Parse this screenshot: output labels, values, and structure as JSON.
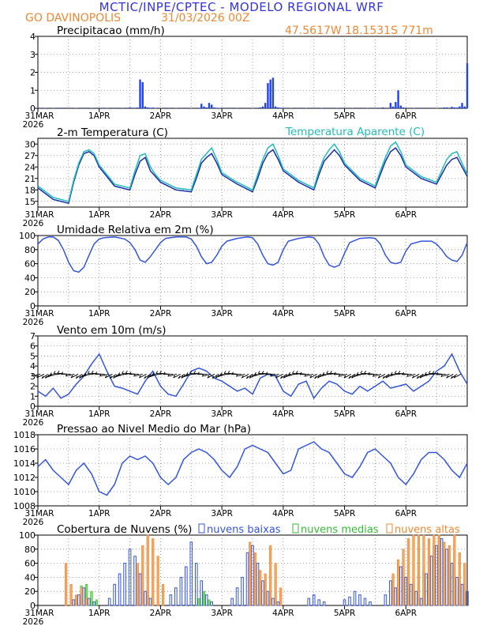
{
  "header": {
    "title": "MCTIC/INPE/CPTEC - MODELO REGIONAL WRF",
    "location": "GO DAVINOPOLIS",
    "run": "31/03/2026 00Z",
    "coords": "47.5617W 18.1531S 771m",
    "title_color": "#3333dd",
    "accent_color": "#ee8833"
  },
  "x_axis": {
    "ticks": [
      "31MAR",
      "1APR",
      "2APR",
      "3APR",
      "4APR",
      "5APR",
      "6APR"
    ],
    "year": "2026",
    "days": 7,
    "grid_hours": [
      0,
      12
    ]
  },
  "chart_data": [
    {
      "id": "precip",
      "type": "bar",
      "title": "Precipitacao (mm/h)",
      "ylim": [
        0,
        4
      ],
      "yticks": [
        "0",
        "1",
        "2",
        "3",
        "4"
      ],
      "color": "#2244ee",
      "hours": [
        0,
        3,
        6,
        9,
        12,
        15,
        18,
        21,
        24,
        27,
        30,
        33,
        36,
        38,
        39,
        40,
        41,
        42,
        43,
        44,
        45,
        46,
        48,
        51,
        54,
        57,
        60,
        63,
        64,
        65,
        66,
        67,
        68,
        69,
        70,
        71,
        72,
        75,
        78,
        81,
        84,
        87,
        88,
        89,
        90,
        91,
        92,
        93,
        94,
        95,
        96,
        99,
        102,
        105,
        108,
        111,
        114,
        117,
        120,
        123,
        126,
        129,
        132,
        135,
        138,
        139,
        140,
        141,
        142,
        143,
        144,
        147,
        150,
        153,
        156,
        159,
        160,
        162,
        163,
        164,
        165,
        166,
        167,
        168
      ],
      "values": [
        0.03,
        0.02,
        0.02,
        0.03,
        0.03,
        0.02,
        0.03,
        0.02,
        0.03,
        0.02,
        0.03,
        0.02,
        0.05,
        0.03,
        0.04,
        1.6,
        1.45,
        0.1,
        0.05,
        0.03,
        0.04,
        0.02,
        0.02,
        0.03,
        0.02,
        0.03,
        0.02,
        0.03,
        0.25,
        0.1,
        0.05,
        0.3,
        0.2,
        0.05,
        0.03,
        0.02,
        0.03,
        0.03,
        0.02,
        0.03,
        0.02,
        0.05,
        0.1,
        0.3,
        1.4,
        1.6,
        1.7,
        0.1,
        0.05,
        0.03,
        0.03,
        0.02,
        0.03,
        0.02,
        0.03,
        0.02,
        0.03,
        0.02,
        0.03,
        0.02,
        0.03,
        0.02,
        0.03,
        0.05,
        0.3,
        0.1,
        0.35,
        1.0,
        0.15,
        0.05,
        0.03,
        0.02,
        0.03,
        0.03,
        0.02,
        0.05,
        0.05,
        0.08,
        0.05,
        0.04,
        0.1,
        0.3,
        0.1,
        2.5
      ]
    },
    {
      "id": "temp",
      "type": "line",
      "title": "2-m Temperatura (C)",
      "legend": "Temperatura Aparente (C)",
      "ylim": [
        13.5,
        31.5
      ],
      "yticks": [
        "15",
        "18",
        "21",
        "24",
        "27",
        "30"
      ],
      "series": [
        {
          "name": "temperatura",
          "color": "#1a2ea8",
          "x": [
            0,
            6,
            12,
            14,
            16,
            18,
            20,
            22,
            24,
            30,
            36,
            38,
            40,
            42,
            44,
            46,
            48,
            54,
            60,
            62,
            64,
            66,
            68,
            70,
            72,
            78,
            84,
            86,
            88,
            90,
            92,
            94,
            96,
            102,
            108,
            110,
            112,
            114,
            116,
            118,
            120,
            126,
            132,
            134,
            136,
            138,
            140,
            142,
            144,
            150,
            156,
            158,
            160,
            162,
            164,
            166,
            168
          ],
          "y": [
            18.5,
            15.5,
            14.5,
            20,
            24.5,
            27.5,
            28,
            27,
            24,
            19,
            18,
            22,
            25.5,
            26.5,
            23,
            21.5,
            20,
            18,
            17.5,
            21,
            25,
            26.5,
            27.5,
            25,
            22,
            19.5,
            17.5,
            21,
            25,
            27.5,
            28.5,
            26,
            23,
            20,
            18,
            22,
            25.5,
            27,
            28.5,
            27,
            24.5,
            20.5,
            18.5,
            22,
            25.5,
            28,
            29,
            27,
            24,
            21,
            19.5,
            22,
            24.5,
            26,
            26.5,
            24,
            21.5
          ]
        },
        {
          "name": "temperatura aparente",
          "color": "#22bbbb",
          "x": [
            0,
            6,
            12,
            14,
            16,
            18,
            20,
            22,
            24,
            30,
            36,
            38,
            40,
            42,
            44,
            46,
            48,
            54,
            60,
            62,
            64,
            66,
            68,
            70,
            72,
            78,
            84,
            86,
            88,
            90,
            92,
            94,
            96,
            102,
            108,
            110,
            112,
            114,
            116,
            118,
            120,
            126,
            132,
            134,
            136,
            138,
            140,
            142,
            144,
            150,
            156,
            158,
            160,
            162,
            164,
            166,
            168
          ],
          "y": [
            19,
            16,
            15,
            20.5,
            25,
            28,
            28.5,
            27.5,
            24.5,
            19.5,
            18.5,
            23,
            27,
            27.5,
            24,
            22,
            20.5,
            18.5,
            18,
            22,
            26,
            27.5,
            29,
            26,
            22.5,
            20,
            18,
            22,
            26,
            29,
            30,
            27,
            23.5,
            20.5,
            18.5,
            23,
            26.5,
            28.5,
            30,
            28,
            25,
            21,
            19,
            23,
            26.5,
            29.5,
            30.5,
            28,
            24.5,
            21.5,
            20,
            23,
            26,
            27.5,
            28,
            25,
            22
          ]
        }
      ]
    },
    {
      "id": "rh",
      "type": "line",
      "title": "Umidade Relativa em 2m (%)",
      "ylim": [
        0,
        100
      ],
      "yticks": [
        "0",
        "20",
        "40",
        "60",
        "80",
        "100"
      ],
      "series": [
        {
          "name": "umidade",
          "color": "#3355dd",
          "x": [
            0,
            2,
            4,
            6,
            8,
            10,
            12,
            14,
            16,
            18,
            20,
            22,
            24,
            26,
            30,
            34,
            36,
            38,
            40,
            42,
            44,
            46,
            48,
            50,
            54,
            58,
            60,
            62,
            64,
            66,
            68,
            70,
            72,
            74,
            78,
            82,
            84,
            86,
            88,
            90,
            92,
            94,
            96,
            98,
            102,
            106,
            108,
            110,
            112,
            114,
            116,
            118,
            120,
            122,
            126,
            130,
            132,
            134,
            136,
            138,
            140,
            142,
            144,
            146,
            150,
            154,
            156,
            158,
            160,
            162,
            164,
            166,
            168
          ],
          "y": [
            88,
            95,
            98,
            98,
            93,
            80,
            62,
            50,
            48,
            55,
            72,
            88,
            95,
            97,
            98,
            95,
            90,
            80,
            65,
            62,
            70,
            80,
            90,
            96,
            98,
            98,
            95,
            85,
            70,
            60,
            62,
            72,
            85,
            92,
            96,
            98,
            97,
            88,
            72,
            60,
            58,
            62,
            80,
            92,
            96,
            98,
            97,
            88,
            70,
            58,
            55,
            58,
            75,
            90,
            96,
            97,
            96,
            88,
            72,
            62,
            60,
            62,
            78,
            88,
            92,
            92,
            88,
            80,
            70,
            65,
            63,
            72,
            90
          ]
        }
      ]
    },
    {
      "id": "wind",
      "type": "line",
      "title": "Vento em 10m (m/s)",
      "ylim": [
        0,
        7
      ],
      "yticks": [
        "0",
        "1",
        "2",
        "3",
        "4",
        "5",
        "6",
        "7"
      ],
      "series": [
        {
          "name": "vento",
          "color": "#3355dd",
          "x": [
            0,
            3,
            6,
            9,
            12,
            15,
            18,
            21,
            24,
            27,
            30,
            33,
            36,
            39,
            42,
            45,
            48,
            51,
            54,
            57,
            60,
            63,
            66,
            69,
            72,
            75,
            78,
            81,
            84,
            87,
            90,
            93,
            96,
            99,
            102,
            105,
            108,
            111,
            114,
            117,
            120,
            123,
            126,
            129,
            132,
            135,
            138,
            141,
            144,
            147,
            150,
            153,
            156,
            159,
            162,
            165,
            168
          ],
          "y": [
            1.5,
            1.0,
            1.8,
            0.8,
            1.2,
            2.2,
            3.0,
            4.2,
            5.2,
            3.5,
            2.0,
            1.8,
            1.5,
            1.2,
            2.5,
            3.5,
            2.0,
            1.2,
            1.0,
            2.2,
            3.5,
            3.8,
            3.5,
            2.8,
            2.5,
            2.0,
            1.5,
            1.8,
            1.2,
            2.8,
            3.2,
            3.0,
            1.5,
            1.0,
            2.2,
            2.5,
            0.8,
            1.8,
            2.5,
            2.2,
            1.5,
            1.2,
            2.0,
            1.5,
            2.0,
            2.5,
            1.8,
            2.0,
            2.2,
            1.5,
            2.0,
            2.5,
            3.5,
            4.0,
            5.2,
            3.5,
            2.2
          ]
        }
      ],
      "barbs": {
        "color": "#000000",
        "level": 3.2,
        "count": 112
      }
    },
    {
      "id": "pressure",
      "type": "line",
      "title": "Pressao ao Nivel Medio do Mar (hPa)",
      "ylim": [
        1008,
        1018
      ],
      "yticks": [
        "1008",
        "1010",
        "1012",
        "1014",
        "1016",
        "1018"
      ],
      "series": [
        {
          "name": "pressao",
          "color": "#3355dd",
          "x": [
            0,
            3,
            6,
            9,
            12,
            15,
            18,
            21,
            24,
            27,
            30,
            33,
            36,
            39,
            42,
            45,
            48,
            51,
            54,
            57,
            60,
            63,
            66,
            69,
            72,
            75,
            78,
            81,
            84,
            87,
            90,
            93,
            96,
            99,
            102,
            105,
            108,
            111,
            114,
            117,
            120,
            123,
            126,
            129,
            132,
            135,
            138,
            141,
            144,
            147,
            150,
            153,
            156,
            159,
            162,
            165,
            168
          ],
          "y": [
            1013.5,
            1014.5,
            1013,
            1012,
            1011,
            1013,
            1014,
            1012.5,
            1010,
            1009.5,
            1011,
            1014,
            1015,
            1014.5,
            1015,
            1014,
            1012,
            1011,
            1012,
            1014.5,
            1015.5,
            1016,
            1015.5,
            1014.5,
            1013,
            1012,
            1013.5,
            1016,
            1016.5,
            1016,
            1015.5,
            1014,
            1012.5,
            1013,
            1016,
            1016.5,
            1017,
            1016,
            1015.5,
            1014,
            1012.5,
            1012,
            1013.5,
            1015.5,
            1016,
            1015,
            1014,
            1012,
            1011,
            1012.5,
            1014.5,
            1015.5,
            1015.5,
            1014.5,
            1013,
            1012,
            1014
          ]
        }
      ]
    },
    {
      "id": "clouds",
      "type": "bar",
      "title": "Cobertura de Nuvens (%)",
      "ylim": [
        0,
        100
      ],
      "yticks": [
        "0",
        "20",
        "40",
        "60",
        "80",
        "100"
      ],
      "legend": [
        {
          "name": "nuvens baixas",
          "color": "#3355dd"
        },
        {
          "name": "nuvens medias",
          "color": "#33bb33"
        },
        {
          "name": "nuvens altas",
          "color": "#ee8833"
        }
      ],
      "series": [
        {
          "name": "nuvens baixas",
          "hours": [
            14,
            16,
            18,
            20,
            22,
            28,
            30,
            32,
            34,
            36,
            38,
            40,
            42,
            44,
            52,
            54,
            56,
            58,
            60,
            62,
            64,
            66,
            68,
            76,
            78,
            80,
            82,
            84,
            86,
            88,
            90,
            92,
            94,
            106,
            108,
            110,
            112,
            120,
            122,
            124,
            126,
            128,
            130,
            136,
            138,
            140,
            142,
            144,
            146,
            148,
            150,
            152,
            154,
            156,
            158,
            160,
            162,
            164,
            166,
            168
          ],
          "values": [
            8,
            15,
            25,
            10,
            5,
            10,
            30,
            45,
            60,
            80,
            70,
            45,
            20,
            10,
            15,
            25,
            40,
            55,
            90,
            60,
            35,
            15,
            5,
            10,
            25,
            40,
            75,
            85,
            60,
            35,
            20,
            10,
            5,
            10,
            15,
            8,
            5,
            8,
            12,
            20,
            15,
            10,
            5,
            15,
            35,
            25,
            55,
            40,
            30,
            20,
            10,
            45,
            70,
            85,
            95,
            80,
            60,
            40,
            30,
            20
          ]
        },
        {
          "name": "nuvens medias",
          "hours": [
            15,
            17,
            19,
            21,
            23,
            41,
            43,
            45,
            63,
            65,
            67,
            85,
            87,
            89,
            91,
            93,
            139,
            143,
            145,
            147,
            149,
            151,
            153,
            155,
            157,
            159,
            161,
            163,
            165,
            167
          ],
          "values": [
            12,
            28,
            30,
            20,
            8,
            10,
            15,
            5,
            10,
            20,
            8,
            15,
            25,
            20,
            12,
            6,
            10,
            20,
            35,
            30,
            60,
            50,
            45,
            85,
            100,
            90,
            60,
            40,
            25,
            15
          ]
        },
        {
          "name": "nuvens altas",
          "hours": [
            11,
            13,
            15,
            17,
            19,
            39,
            41,
            43,
            45,
            47,
            49,
            83,
            85,
            87,
            89,
            91,
            93,
            95,
            139,
            141,
            143,
            145,
            147,
            149,
            151,
            153,
            155,
            157,
            159,
            161,
            163,
            165,
            167
          ],
          "values": [
            60,
            30,
            15,
            25,
            10,
            60,
            85,
            100,
            95,
            70,
            30,
            90,
            75,
            50,
            45,
            85,
            60,
            25,
            45,
            65,
            80,
            95,
            100,
            100,
            100,
            95,
            100,
            100,
            90,
            85,
            100,
            75,
            60
          ]
        }
      ]
    }
  ]
}
